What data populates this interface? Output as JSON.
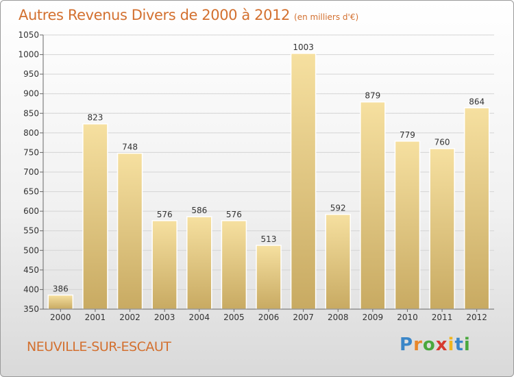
{
  "chart_data": {
    "type": "bar",
    "title": "Autres Revenus Divers de 2000 à 2012",
    "unit": "(en milliers d'€)",
    "categories": [
      "2000",
      "2001",
      "2002",
      "2003",
      "2004",
      "2005",
      "2006",
      "2007",
      "2008",
      "2009",
      "2010",
      "2011",
      "2012"
    ],
    "values": [
      386,
      823,
      748,
      576,
      586,
      576,
      513,
      1003,
      592,
      879,
      779,
      760,
      864
    ],
    "ylim": [
      350,
      1050
    ],
    "yticks": [
      350,
      400,
      450,
      500,
      550,
      600,
      650,
      700,
      750,
      800,
      850,
      900,
      950,
      1000,
      1050
    ],
    "grid": true,
    "bar_color_light": "#f6e0a0",
    "bar_color_dark": "#c8aa62",
    "xlabel": "",
    "ylabel": ""
  },
  "footer": {
    "location": "NEUVILLE-SUR-ESCAUT",
    "logo_letters": [
      {
        "char": "P",
        "color": "#3a86c8"
      },
      {
        "char": "r",
        "color": "#e8862a"
      },
      {
        "char": "o",
        "color": "#4aa83e"
      },
      {
        "char": "x",
        "color": "#d63a2f"
      },
      {
        "char": "i",
        "color": "#f0b51e"
      },
      {
        "char": "t",
        "color": "#3a86c8"
      },
      {
        "char": "i",
        "color": "#4aa83e"
      }
    ]
  },
  "accent_color": "#d3702f"
}
